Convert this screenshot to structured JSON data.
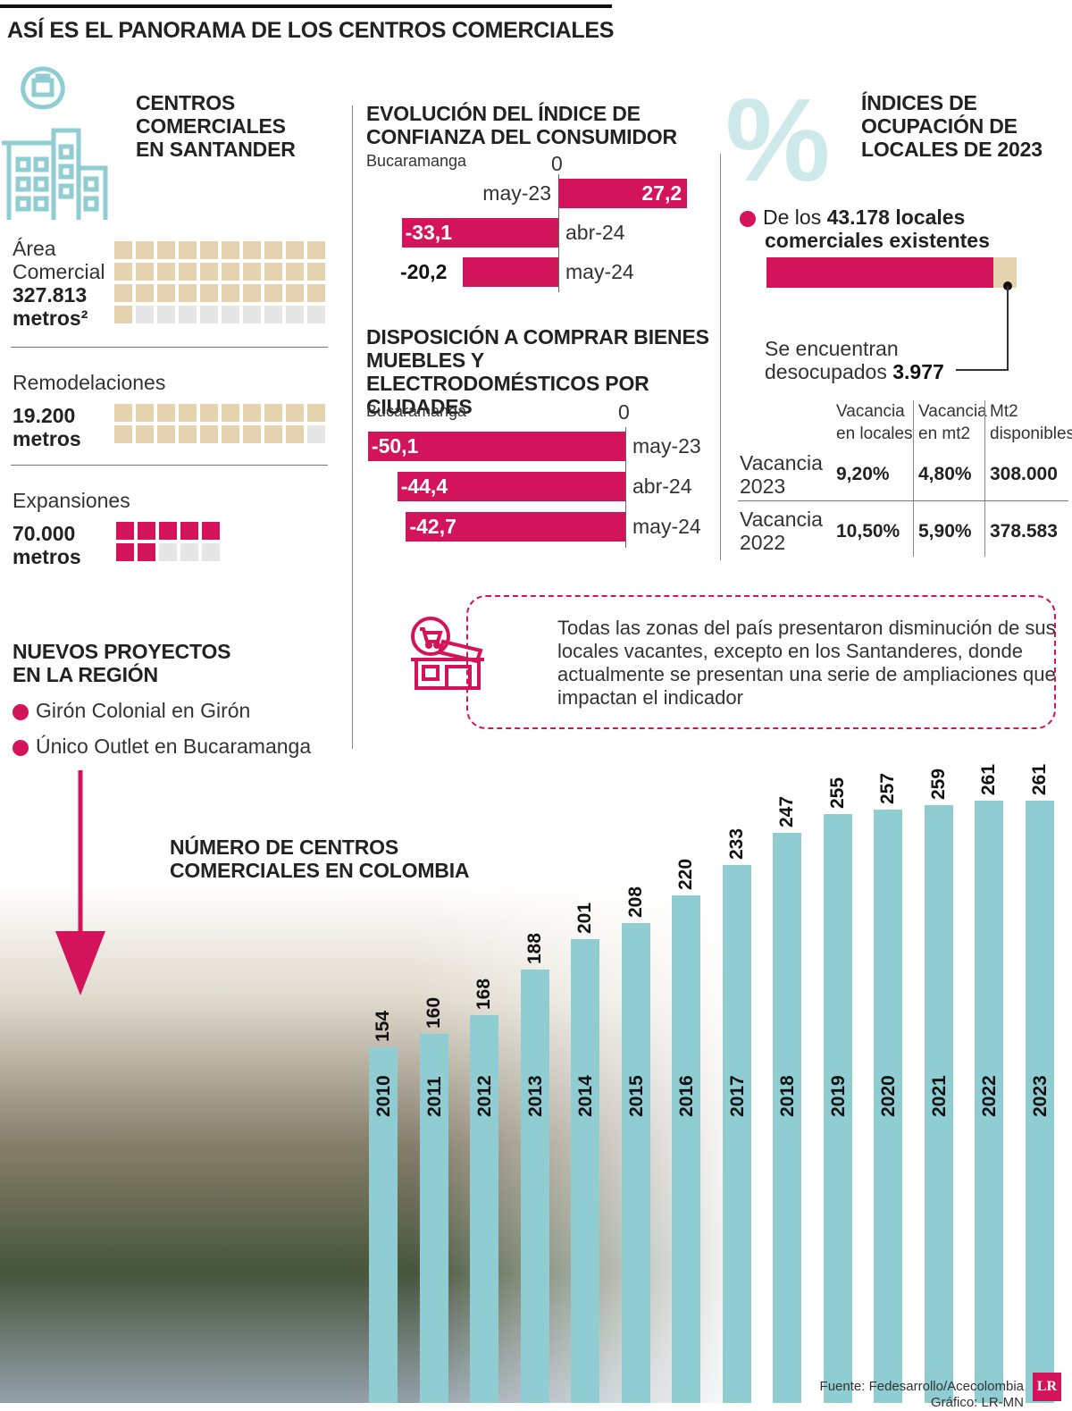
{
  "header": {
    "title": "ASÍ ES EL PANORAMA DE LOS CENTROS COMERCIALES"
  },
  "santander": {
    "title_lines": [
      "CENTROS",
      "COMERCIALES",
      "EN SANTANDER"
    ],
    "area": {
      "label_lines": [
        "Área",
        "Comercial"
      ],
      "value": "327.813",
      "unit": "metros²",
      "filled": 31,
      "total": 40
    },
    "remodel": {
      "label": "Remodelaciones",
      "value": "19.200",
      "unit": "metros",
      "filled": 19,
      "total": 20
    },
    "expansion": {
      "label": "Expansiones",
      "value": "70.000",
      "unit": "metros",
      "filled": 7,
      "total": 10
    }
  },
  "new_projects": {
    "title_lines": [
      "NUEVOS PROYECTOS",
      "EN LA REGIÓN"
    ],
    "items": [
      "Girón Colonial en Girón",
      "Único Outlet en Bucaramanga"
    ]
  },
  "chart_data": [
    {
      "type": "bar",
      "title": "EVOLUCIÓN DEL ÍNDICE DE CONFIANZA DEL CONSUMIDOR",
      "subtitle": "Bucaramanga",
      "zero_label": "0",
      "categories": [
        "may-23",
        "abr-24",
        "may-24"
      ],
      "values": [
        27.2,
        -33.1,
        -20.2
      ],
      "value_labels": [
        "27,2",
        "-33,1",
        "-20,2"
      ]
    },
    {
      "type": "bar",
      "title": "DISPOSICIÓN A COMPRAR BIENES MUEBLES Y ELECTRODOMÉSTICOS POR CIUDADES",
      "subtitle": "Bucaramanga",
      "zero_label": "0",
      "categories": [
        "may-23",
        "abr-24",
        "may-24"
      ],
      "values": [
        -50.1,
        -44.4,
        -42.7
      ],
      "value_labels": [
        "-50,1",
        "-44,4",
        "-42,7"
      ]
    },
    {
      "type": "bar",
      "title": "NÚMERO DE CENTROS COMERCIALES EN COLOMBIA",
      "categories": [
        "2010",
        "2011",
        "2012",
        "2013",
        "2014",
        "2015",
        "2016",
        "2017",
        "2018",
        "2019",
        "2020",
        "2021",
        "2022",
        "2023"
      ],
      "values": [
        154,
        160,
        168,
        188,
        201,
        208,
        220,
        233,
        247,
        255,
        257,
        259,
        261,
        261
      ]
    }
  ],
  "occupancy": {
    "title_lines": [
      "ÍNDICES DE",
      "OCUPACIÓN DE",
      "LOCALES DE 2023"
    ],
    "total_prefix": "De los",
    "total_value": "43.178 locales",
    "total_suffix": "comerciales existentes",
    "vacant_label_1": "Se encuentran",
    "vacant_label_2": "desocupados",
    "vacant_value": "3.977",
    "total_count": 43178,
    "vacant_count": 3977,
    "table": {
      "headers": [
        [
          "Vacancia",
          "en locales"
        ],
        [
          "Vacancia",
          "en mt2"
        ],
        [
          "Mt2",
          "disponibles"
        ]
      ],
      "rows": [
        {
          "label": [
            "Vacancia",
            "2023"
          ],
          "values": [
            "9,20%",
            "4,80%",
            "308.000"
          ]
        },
        {
          "label": [
            "Vacancia",
            "2022"
          ],
          "values": [
            "10,50%",
            "5,90%",
            "378.583"
          ]
        }
      ]
    }
  },
  "note": {
    "text": "Todas las zonas del país presentaron disminución de sus locales vacantes, excepto en los Santanderes, donde actualmente se presentan una serie de ampliaciones que impactan el indicador"
  },
  "footer": {
    "source": "Fuente: Fedesarrollo/Acecolombia",
    "credit": "Gráfico: LR-MN",
    "logo": "LR"
  },
  "colors": {
    "accent": "#d4145a",
    "beige": "#e4d3ae",
    "teal": "#8fcdd3",
    "grey": "#e6e6e6"
  },
  "icons": [
    "building-icon",
    "percent-icon",
    "shop-icon",
    "down-arrow-icon",
    "lr-logo-icon"
  ]
}
